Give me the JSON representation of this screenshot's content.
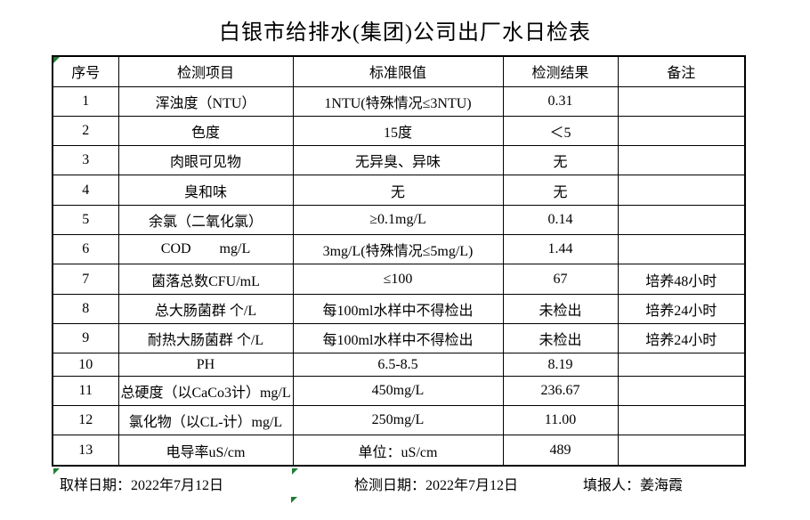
{
  "title": "白银市给排水(集团)公司出厂水日检表",
  "table": {
    "headers": [
      "序号",
      "检测项目",
      "标准限值",
      "检测结果",
      "备注"
    ],
    "rows": [
      {
        "no": "1",
        "item": "浑浊度（NTU）",
        "standard": "1NTU(特殊情况≤3NTU)",
        "result": "0.31",
        "note": ""
      },
      {
        "no": "2",
        "item": "色度",
        "standard": "15度",
        "result": "＜5",
        "note": ""
      },
      {
        "no": "3",
        "item": "肉眼可见物",
        "standard": "无异臭、异味",
        "result": "无",
        "note": ""
      },
      {
        "no": "4",
        "item": "臭和味",
        "standard": "无",
        "result": "无",
        "note": ""
      },
      {
        "no": "5",
        "item": "余氯（二氧化氯）",
        "standard": "≥0.1mg/L",
        "result": "0.14",
        "note": ""
      },
      {
        "no": "6",
        "item": "COD        mg/L",
        "standard": "3mg/L(特殊情况≤5mg/L)",
        "result": "1.44",
        "note": ""
      },
      {
        "no": "7",
        "item": "菌落总数CFU/mL",
        "standard": "≤100",
        "result": "67",
        "note": "培养48小时"
      },
      {
        "no": "8",
        "item": "总大肠菌群 个/L",
        "standard": "每100ml水样中不得检出",
        "result": "未检出",
        "note": "培养24小时"
      },
      {
        "no": "9",
        "item": "耐热大肠菌群 个/L",
        "standard": "每100ml水样中不得检出",
        "result": "未检出",
        "note": "培养24小时"
      },
      {
        "no": "10",
        "item": "PH",
        "standard": "6.5-8.5",
        "result": "8.19",
        "note": ""
      },
      {
        "no": "11",
        "item": "总硬度（以CaCo3计）mg/L",
        "standard": "450mg/L",
        "result": "236.67",
        "note": ""
      },
      {
        "no": "12",
        "item": "氯化物（以CL-计）mg/L",
        "standard": "250mg/L",
        "result": "11.00",
        "note": ""
      },
      {
        "no": "13",
        "item": "电导率uS/cm",
        "standard": "单位：uS/cm",
        "result": "489",
        "note": ""
      }
    ]
  },
  "footer": {
    "sample_date": "取样日期：2022年7月12日",
    "test_date": "检测日期：2022年7月12日",
    "reporter": "填报人：姜海霞"
  },
  "colors": {
    "indicator_green": "#1e7e34",
    "border": "#000000",
    "background": "#ffffff"
  }
}
